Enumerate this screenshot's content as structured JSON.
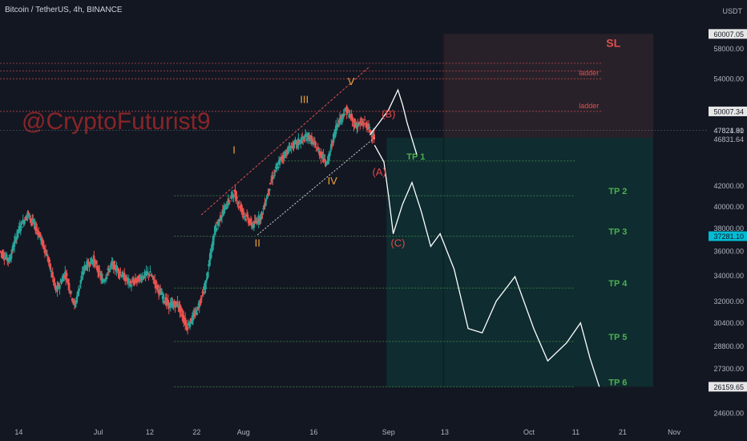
{
  "header": {
    "title": "Bitcoin / TetherUS, 4h, BINANCE"
  },
  "watermark": "@CryptoFuturist9",
  "chart_data": {
    "type": "candlestick",
    "title": "Bitcoin / TetherUS, 4h, BINANCE",
    "currency": "USDT",
    "y_scale": "log",
    "ylim": [
      24000,
      62000
    ],
    "y_ticks": [
      24600,
      26159.65,
      27300,
      28800,
      30400,
      32000,
      34000,
      36000,
      37281.1,
      38000,
      40000,
      42000,
      46831.64,
      47821.91,
      47824.8,
      50007.34,
      54000,
      58000,
      60007.05
    ],
    "y_tick_labels": [
      "24600.00",
      "26159.65",
      "27300.00",
      "28800.00",
      "30400.00",
      "32000.00",
      "34000.00",
      "36000.00",
      "37281.10",
      "38000.00",
      "40000.00",
      "42000.00",
      "46831.64",
      "47821.91",
      "47824.80",
      "50007.34",
      "54000.00",
      "58000.00",
      "60007.05"
    ],
    "x_ticks": [
      {
        "label": "14",
        "date": "2021-06-14"
      },
      {
        "label": "Jul",
        "date": "2021-07-01"
      },
      {
        "label": "12",
        "date": "2021-07-12"
      },
      {
        "label": "22",
        "date": "2021-07-22"
      },
      {
        "label": "Aug",
        "date": "2021-08-01"
      },
      {
        "label": "16",
        "date": "2021-08-16"
      },
      {
        "label": "Sep",
        "date": "2021-09-01"
      },
      {
        "label": "13",
        "date": "2021-09-13"
      },
      {
        "label": "Oct",
        "date": "2021-10-01"
      },
      {
        "label": "11",
        "date": "2021-10-11"
      },
      {
        "label": "21",
        "date": "2021-10-21"
      },
      {
        "label": "Nov",
        "date": "2021-11-01"
      }
    ],
    "xlim": [
      "2021-06-10",
      "2021-11-08"
    ],
    "price_path": [
      [
        "2021-06-10",
        36000
      ],
      [
        "2021-06-12",
        35200
      ],
      [
        "2021-06-14",
        37800
      ],
      [
        "2021-06-16",
        39300
      ],
      [
        "2021-06-18",
        37800
      ],
      [
        "2021-06-20",
        35800
      ],
      [
        "2021-06-22",
        32700
      ],
      [
        "2021-06-24",
        34200
      ],
      [
        "2021-06-26",
        31600
      ],
      [
        "2021-06-28",
        34600
      ],
      [
        "2021-06-30",
        35300
      ],
      [
        "2021-07-02",
        33500
      ],
      [
        "2021-07-04",
        34900
      ],
      [
        "2021-07-06",
        34100
      ],
      [
        "2021-07-08",
        33300
      ],
      [
        "2021-07-10",
        33800
      ],
      [
        "2021-07-12",
        34200
      ],
      [
        "2021-07-14",
        32800
      ],
      [
        "2021-07-16",
        31700
      ],
      [
        "2021-07-18",
        31800
      ],
      [
        "2021-07-20",
        30100
      ],
      [
        "2021-07-22",
        31200
      ],
      [
        "2021-07-24",
        33300
      ],
      [
        "2021-07-26",
        37900
      ],
      [
        "2021-07-28",
        39800
      ],
      [
        "2021-07-30",
        41300
      ],
      [
        "2021-08-01",
        39400
      ],
      [
        "2021-08-03",
        38200
      ],
      [
        "2021-08-05",
        39200
      ],
      [
        "2021-08-07",
        42500
      ],
      [
        "2021-08-09",
        44700
      ],
      [
        "2021-08-11",
        45900
      ],
      [
        "2021-08-13",
        46600
      ],
      [
        "2021-08-15",
        47200
      ],
      [
        "2021-08-17",
        45600
      ],
      [
        "2021-08-19",
        44300
      ],
      [
        "2021-08-21",
        48500
      ],
      [
        "2021-08-23",
        50200
      ],
      [
        "2021-08-25",
        48400
      ],
      [
        "2021-08-27",
        48700
      ],
      [
        "2021-08-29",
        47100
      ]
    ],
    "wave_labels": [
      {
        "label": "I",
        "date": "2021-07-30",
        "price": 45300
      },
      {
        "label": "II",
        "date": "2021-08-04",
        "price": 36400
      },
      {
        "label": "III",
        "date": "2021-08-14",
        "price": 51000
      },
      {
        "label": "IV",
        "date": "2021-08-20",
        "price": 42100
      },
      {
        "label": "V",
        "date": "2021-08-24",
        "price": 53200
      },
      {
        "label": "(A)",
        "date": "2021-08-30",
        "price": 43000
      },
      {
        "label": "(B)",
        "date": "2021-09-01",
        "price": 49300
      },
      {
        "label": "(C)",
        "date": "2021-09-03",
        "price": 36400
      }
    ],
    "projection": [
      [
        "2021-08-28",
        47300
      ],
      [
        "2021-08-30",
        48700
      ],
      [
        "2021-09-01",
        50200
      ],
      [
        "2021-09-03",
        52600
      ],
      [
        "2021-09-04",
        50800
      ],
      [
        "2021-09-05",
        48600
      ],
      [
        "2021-09-07",
        45200
      ],
      [
        "2021-08-29",
        46200
      ],
      [
        "2021-08-31",
        44400
      ],
      [
        "2021-09-01",
        41000
      ],
      [
        "2021-09-02",
        37500
      ],
      [
        "2021-09-04",
        40200
      ],
      [
        "2021-09-06",
        42300
      ],
      [
        "2021-09-08",
        39500
      ],
      [
        "2021-09-10",
        36400
      ],
      [
        "2021-09-12",
        37500
      ],
      [
        "2021-09-15",
        34500
      ],
      [
        "2021-09-18",
        30000
      ],
      [
        "2021-09-21",
        29700
      ],
      [
        "2021-09-24",
        32000
      ],
      [
        "2021-09-28",
        33900
      ],
      [
        "2021-10-02",
        30000
      ],
      [
        "2021-10-05",
        27800
      ],
      [
        "2021-10-09",
        29000
      ],
      [
        "2021-10-12",
        30400
      ],
      [
        "2021-10-14",
        28000
      ],
      [
        "2021-10-16",
        26159.65
      ]
    ],
    "levels": [
      {
        "label": "ladder",
        "price": 54000,
        "color": "#e05050"
      },
      {
        "label": "ladder",
        "price": 50007.34,
        "color": "#e05050"
      },
      {
        "label": "TP 1",
        "price": 44500,
        "color": "#4caf50"
      },
      {
        "label": "TP 2",
        "price": 41000,
        "color": "#4caf50"
      },
      {
        "label": "TP 3",
        "price": 37281.1,
        "color": "#4caf50"
      },
      {
        "label": "TP 4",
        "price": 33000,
        "color": "#4caf50"
      },
      {
        "label": "TP 5",
        "price": 29100,
        "color": "#4caf50"
      },
      {
        "label": "TP 6",
        "price": 26159.65,
        "color": "#4caf50"
      }
    ],
    "stop_loss": {
      "label": "SL",
      "price": 60007.05
    },
    "grid": false,
    "colors": {
      "up": "#26a69a",
      "down": "#ef5350",
      "target": "#4caf50",
      "stop": "#e05050",
      "wave": "#f2a33a",
      "abc": "#e04848",
      "price_tag": "#00bcd4"
    }
  }
}
